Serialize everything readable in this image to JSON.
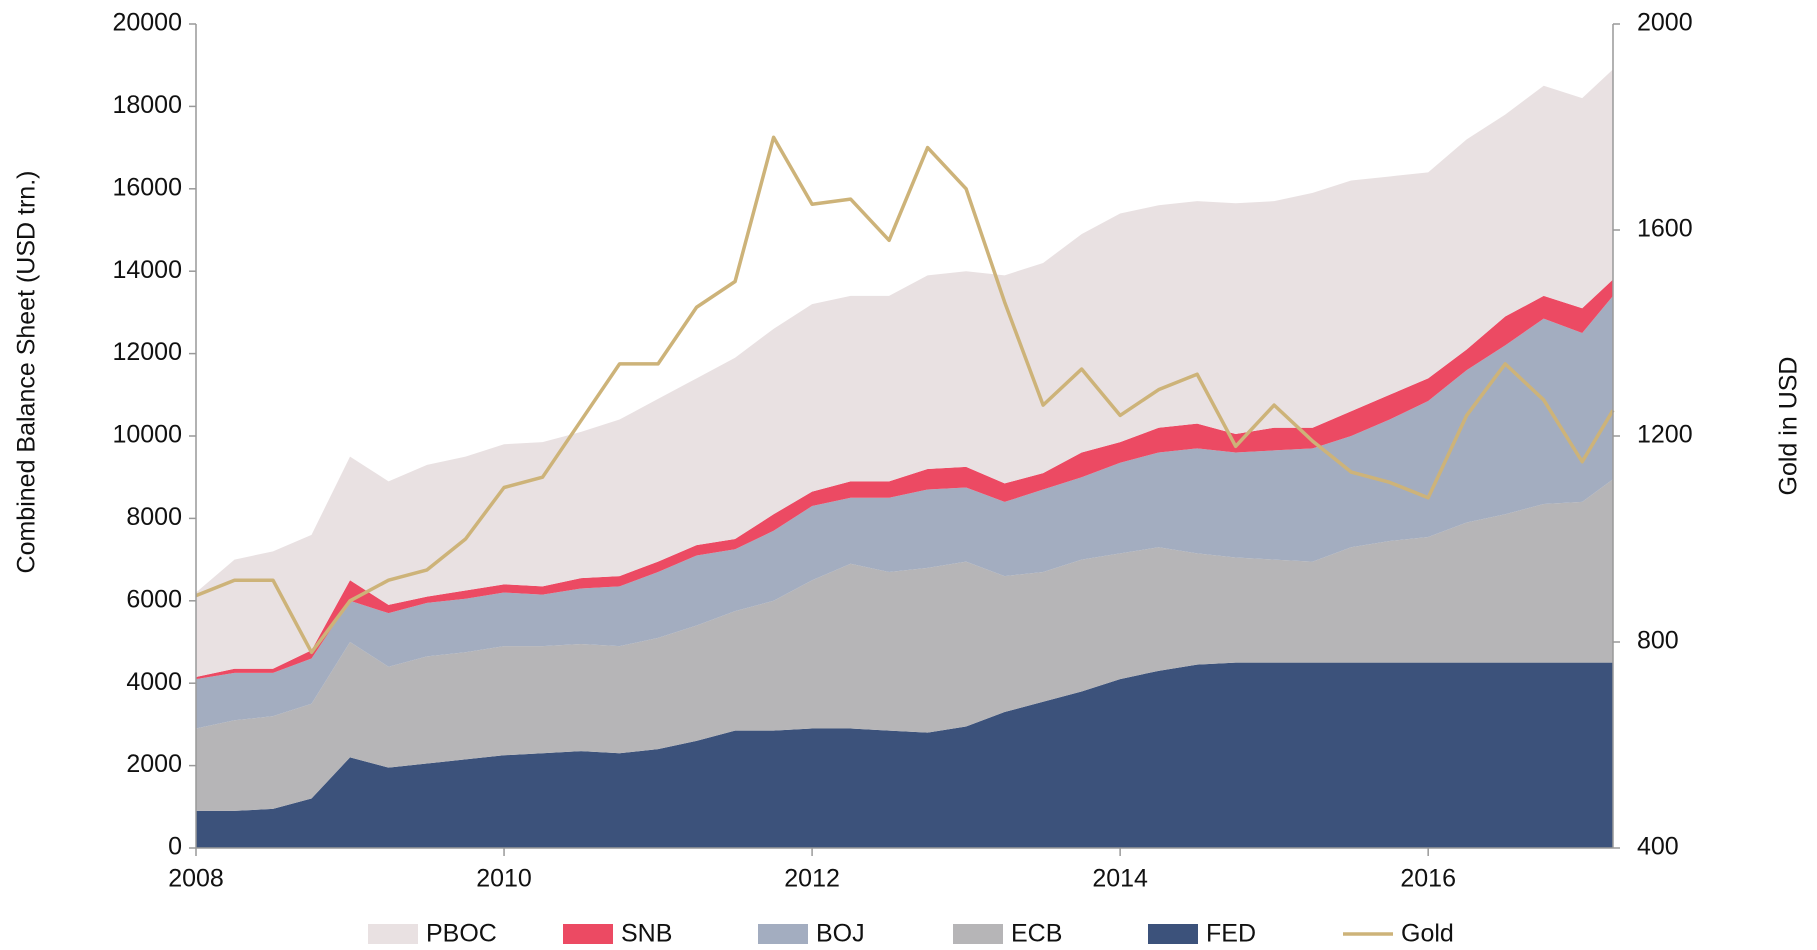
{
  "chart_data": {
    "type": "stacked_area",
    "ylabel": "Combined Balance Sheet (USD trn.)",
    "y2label": "Gold in USD",
    "x": [
      2008,
      2008.25,
      2008.5,
      2008.75,
      2009,
      2009.25,
      2009.5,
      2009.75,
      2010,
      2010.25,
      2010.5,
      2010.75,
      2011,
      2011.25,
      2011.5,
      2011.75,
      2012,
      2012.25,
      2012.5,
      2012.75,
      2013,
      2013.25,
      2013.5,
      2013.75,
      2014,
      2014.25,
      2014.5,
      2014.75,
      2015,
      2015.25,
      2015.5,
      2015.75,
      2016,
      2016.25,
      2016.5,
      2016.75,
      2017,
      2017.2
    ],
    "xlim": [
      2008,
      2017.2
    ],
    "xticks": [
      2008,
      2010,
      2012,
      2014,
      2016
    ],
    "ylim": [
      0,
      20000
    ],
    "yticks": [
      0,
      2000,
      4000,
      6000,
      8000,
      10000,
      12000,
      14000,
      16000,
      18000,
      20000
    ],
    "y2lim": [
      400,
      2000
    ],
    "y2ticks": [
      400,
      800,
      1200,
      1600,
      2000
    ],
    "legend": "bottom",
    "series": [
      {
        "name": "PBOC",
        "color": "#e9e1e2",
        "values": [
          2050,
          2650,
          2850,
          2800,
          3000,
          3000,
          3200,
          3250,
          3400,
          3500,
          3550,
          3800,
          3950,
          4050,
          4400,
          4500,
          4550,
          4500,
          4500,
          4700,
          4750,
          5050,
          5100,
          5300,
          5550,
          5400,
          5400,
          5600,
          5500,
          5700,
          5600,
          5300,
          5000,
          5100,
          4900,
          5100,
          5100,
          5100
        ]
      },
      {
        "name": "SNB",
        "color": "#ec4a63",
        "values": [
          50,
          100,
          100,
          200,
          500,
          200,
          150,
          200,
          200,
          200,
          250,
          250,
          250,
          250,
          250,
          400,
          350,
          400,
          400,
          500,
          500,
          450,
          400,
          600,
          500,
          600,
          600,
          450,
          550,
          500,
          600,
          600,
          550,
          500,
          700,
          550,
          600,
          400
        ]
      },
      {
        "name": "BOJ",
        "color": "#a3adc0",
        "values": [
          1200,
          1150,
          1050,
          1100,
          1000,
          1300,
          1300,
          1300,
          1300,
          1250,
          1350,
          1450,
          1600,
          1700,
          1500,
          1700,
          1800,
          1600,
          1800,
          1900,
          1800,
          1800,
          2000,
          2000,
          2200,
          2300,
          2550,
          2550,
          2650,
          2750,
          2700,
          2950,
          3300,
          3700,
          4100,
          4500,
          4100,
          4450
        ]
      },
      {
        "name": "ECB",
        "color": "#b6b5b7",
        "values": [
          2000,
          2200,
          2250,
          2300,
          2800,
          2450,
          2600,
          2600,
          2650,
          2600,
          2600,
          2600,
          2700,
          2800,
          2900,
          3150,
          3600,
          4000,
          3850,
          4000,
          4000,
          3300,
          3150,
          3200,
          3050,
          3000,
          2700,
          2550,
          2500,
          2450,
          2800,
          2950,
          3050,
          3400,
          3600,
          3850,
          3900,
          4450
        ]
      },
      {
        "name": "FED",
        "color": "#3c527b",
        "values": [
          900,
          900,
          950,
          1200,
          2200,
          1950,
          2050,
          2150,
          2250,
          2300,
          2350,
          2300,
          2400,
          2600,
          2850,
          2850,
          2900,
          2900,
          2850,
          2800,
          2950,
          3300,
          3550,
          3800,
          4100,
          4300,
          4450,
          4500,
          4500,
          4500,
          4500,
          4500,
          4500,
          4500,
          4500,
          4500,
          4500,
          4500
        ]
      },
      {
        "name": "Gold",
        "color": "#cdb379",
        "axis": "y2",
        "type": "line",
        "values": [
          890,
          920,
          920,
          780,
          880,
          920,
          940,
          1000,
          1100,
          1120,
          1230,
          1340,
          1340,
          1450,
          1500,
          1780,
          1650,
          1660,
          1580,
          1760,
          1680,
          1460,
          1260,
          1330,
          1240,
          1290,
          1320,
          1180,
          1260,
          1190,
          1130,
          1110,
          1080,
          1240,
          1340,
          1270,
          1150,
          1250
        ]
      }
    ]
  }
}
